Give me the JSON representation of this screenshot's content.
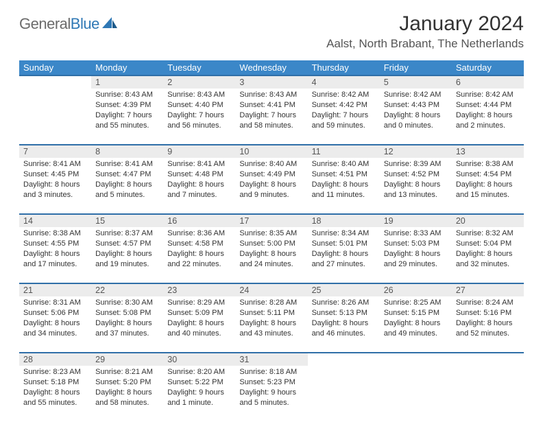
{
  "brand": {
    "part1": "General",
    "part2": "Blue"
  },
  "title": "January 2024",
  "location": "Aalst, North Brabant, The Netherlands",
  "colors": {
    "header_bg": "#3b87c8",
    "rule": "#2f6fa8",
    "daynum_bg": "#ececec",
    "text": "#333333",
    "logo_gray": "#6b6b6b",
    "logo_blue": "#2f78b5"
  },
  "weekdays": [
    "Sunday",
    "Monday",
    "Tuesday",
    "Wednesday",
    "Thursday",
    "Friday",
    "Saturday"
  ],
  "weeks": [
    {
      "nums": [
        "",
        "1",
        "2",
        "3",
        "4",
        "5",
        "6"
      ],
      "cells": [
        "",
        "Sunrise: 8:43 AM\nSunset: 4:39 PM\nDaylight: 7 hours and 55 minutes.",
        "Sunrise: 8:43 AM\nSunset: 4:40 PM\nDaylight: 7 hours and 56 minutes.",
        "Sunrise: 8:43 AM\nSunset: 4:41 PM\nDaylight: 7 hours and 58 minutes.",
        "Sunrise: 8:42 AM\nSunset: 4:42 PM\nDaylight: 7 hours and 59 minutes.",
        "Sunrise: 8:42 AM\nSunset: 4:43 PM\nDaylight: 8 hours and 0 minutes.",
        "Sunrise: 8:42 AM\nSunset: 4:44 PM\nDaylight: 8 hours and 2 minutes."
      ]
    },
    {
      "nums": [
        "7",
        "8",
        "9",
        "10",
        "11",
        "12",
        "13"
      ],
      "cells": [
        "Sunrise: 8:41 AM\nSunset: 4:45 PM\nDaylight: 8 hours and 3 minutes.",
        "Sunrise: 8:41 AM\nSunset: 4:47 PM\nDaylight: 8 hours and 5 minutes.",
        "Sunrise: 8:41 AM\nSunset: 4:48 PM\nDaylight: 8 hours and 7 minutes.",
        "Sunrise: 8:40 AM\nSunset: 4:49 PM\nDaylight: 8 hours and 9 minutes.",
        "Sunrise: 8:40 AM\nSunset: 4:51 PM\nDaylight: 8 hours and 11 minutes.",
        "Sunrise: 8:39 AM\nSunset: 4:52 PM\nDaylight: 8 hours and 13 minutes.",
        "Sunrise: 8:38 AM\nSunset: 4:54 PM\nDaylight: 8 hours and 15 minutes."
      ]
    },
    {
      "nums": [
        "14",
        "15",
        "16",
        "17",
        "18",
        "19",
        "20"
      ],
      "cells": [
        "Sunrise: 8:38 AM\nSunset: 4:55 PM\nDaylight: 8 hours and 17 minutes.",
        "Sunrise: 8:37 AM\nSunset: 4:57 PM\nDaylight: 8 hours and 19 minutes.",
        "Sunrise: 8:36 AM\nSunset: 4:58 PM\nDaylight: 8 hours and 22 minutes.",
        "Sunrise: 8:35 AM\nSunset: 5:00 PM\nDaylight: 8 hours and 24 minutes.",
        "Sunrise: 8:34 AM\nSunset: 5:01 PM\nDaylight: 8 hours and 27 minutes.",
        "Sunrise: 8:33 AM\nSunset: 5:03 PM\nDaylight: 8 hours and 29 minutes.",
        "Sunrise: 8:32 AM\nSunset: 5:04 PM\nDaylight: 8 hours and 32 minutes."
      ]
    },
    {
      "nums": [
        "21",
        "22",
        "23",
        "24",
        "25",
        "26",
        "27"
      ],
      "cells": [
        "Sunrise: 8:31 AM\nSunset: 5:06 PM\nDaylight: 8 hours and 34 minutes.",
        "Sunrise: 8:30 AM\nSunset: 5:08 PM\nDaylight: 8 hours and 37 minutes.",
        "Sunrise: 8:29 AM\nSunset: 5:09 PM\nDaylight: 8 hours and 40 minutes.",
        "Sunrise: 8:28 AM\nSunset: 5:11 PM\nDaylight: 8 hours and 43 minutes.",
        "Sunrise: 8:26 AM\nSunset: 5:13 PM\nDaylight: 8 hours and 46 minutes.",
        "Sunrise: 8:25 AM\nSunset: 5:15 PM\nDaylight: 8 hours and 49 minutes.",
        "Sunrise: 8:24 AM\nSunset: 5:16 PM\nDaylight: 8 hours and 52 minutes."
      ]
    },
    {
      "nums": [
        "28",
        "29",
        "30",
        "31",
        "",
        "",
        ""
      ],
      "cells": [
        "Sunrise: 8:23 AM\nSunset: 5:18 PM\nDaylight: 8 hours and 55 minutes.",
        "Sunrise: 8:21 AM\nSunset: 5:20 PM\nDaylight: 8 hours and 58 minutes.",
        "Sunrise: 8:20 AM\nSunset: 5:22 PM\nDaylight: 9 hours and 1 minute.",
        "Sunrise: 8:18 AM\nSunset: 5:23 PM\nDaylight: 9 hours and 5 minutes.",
        "",
        "",
        ""
      ]
    }
  ]
}
